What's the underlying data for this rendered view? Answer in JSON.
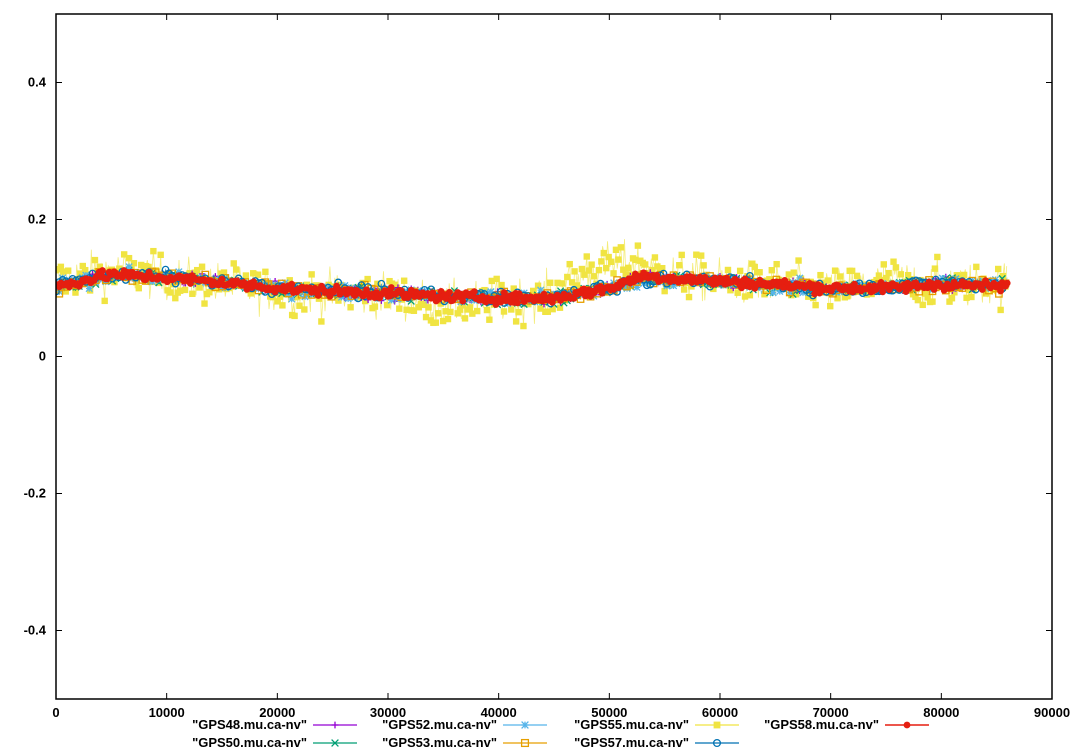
{
  "chart_data": {
    "type": "scatter",
    "title": "",
    "xlabel": "",
    "ylabel": "",
    "xlim": [
      0,
      90000
    ],
    "ylim": [
      -0.5,
      0.5
    ],
    "xticks": [
      "0",
      "10000",
      "20000",
      "30000",
      "40000",
      "50000",
      "60000",
      "70000",
      "80000",
      "90000"
    ],
    "yticks": [
      "0.4",
      "0.2",
      "0",
      "-0.2",
      "-0.4"
    ],
    "grid": false,
    "legend_position": "bottom",
    "series": [
      {
        "name": "\"GPS48.mu.ca-nv\"",
        "color": "#9400d3",
        "marker": "plus",
        "scatter": 0.006,
        "x": [
          0,
          5000,
          10000,
          15000,
          20000,
          25000,
          30000,
          35000,
          40000,
          45000,
          50000,
          53000,
          55000,
          60000,
          65000,
          70000,
          75000,
          80000,
          86000
        ],
        "y": [
          0.102,
          0.12,
          0.115,
          0.108,
          0.1,
          0.095,
          0.092,
          0.088,
          0.085,
          0.085,
          0.1,
          0.117,
          0.115,
          0.11,
          0.105,
          0.1,
          0.1,
          0.105,
          0.102
        ]
      },
      {
        "name": "\"GPS50.mu.ca-nv\"",
        "color": "#009e73",
        "marker": "x",
        "scatter": 0.006,
        "x": [
          0,
          5000,
          10000,
          15000,
          20000,
          25000,
          30000,
          35000,
          40000,
          45000,
          50000,
          53000,
          55000,
          60000,
          65000,
          70000,
          75000,
          80000,
          86000
        ],
        "y": [
          0.1,
          0.118,
          0.115,
          0.108,
          0.1,
          0.095,
          0.092,
          0.088,
          0.085,
          0.085,
          0.1,
          0.115,
          0.113,
          0.108,
          0.103,
          0.098,
          0.1,
          0.107,
          0.104
        ]
      },
      {
        "name": "\"GPS52.mu.ca-nv\"",
        "color": "#56b4e9",
        "marker": "star",
        "scatter": 0.007,
        "x": [
          0,
          5000,
          10000,
          15000,
          20000,
          25000,
          30000,
          35000,
          40000,
          45000,
          50000,
          53000,
          55000,
          60000,
          65000,
          70000,
          75000,
          80000,
          86000
        ],
        "y": [
          0.103,
          0.118,
          0.114,
          0.107,
          0.099,
          0.094,
          0.091,
          0.087,
          0.085,
          0.086,
          0.1,
          0.113,
          0.113,
          0.108,
          0.103,
          0.098,
          0.1,
          0.106,
          0.108
        ]
      },
      {
        "name": "\"GPS53.mu.ca-nv\"",
        "color": "#e69f00",
        "marker": "square",
        "scatter": 0.006,
        "x": [
          0,
          5000,
          10000,
          15000,
          20000,
          25000,
          30000,
          35000,
          40000,
          45000,
          50000,
          53000,
          55000,
          60000,
          65000,
          70000,
          75000,
          80000,
          86000
        ],
        "y": [
          0.1,
          0.119,
          0.115,
          0.108,
          0.1,
          0.095,
          0.092,
          0.088,
          0.086,
          0.086,
          0.1,
          0.116,
          0.114,
          0.109,
          0.104,
          0.099,
          0.1,
          0.105,
          0.1
        ]
      },
      {
        "name": "\"GPS55.mu.ca-nv\"",
        "color": "#f0e442",
        "marker": "filled-square",
        "scatter": 0.022,
        "x": [
          0,
          5000,
          10000,
          15000,
          20000,
          25000,
          30000,
          35000,
          40000,
          45000,
          48000,
          50000,
          53000,
          55000,
          60000,
          65000,
          70000,
          75000,
          80000,
          86000
        ],
        "y": [
          0.11,
          0.125,
          0.115,
          0.105,
          0.095,
          0.092,
          0.09,
          0.075,
          0.08,
          0.09,
          0.125,
          0.135,
          0.135,
          0.12,
          0.11,
          0.105,
          0.095,
          0.11,
          0.105,
          0.105
        ]
      },
      {
        "name": "\"GPS57.mu.ca-nv\"",
        "color": "#0072b2",
        "marker": "circle",
        "scatter": 0.006,
        "x": [
          0,
          5000,
          10000,
          15000,
          20000,
          25000,
          30000,
          35000,
          40000,
          45000,
          50000,
          53000,
          55000,
          60000,
          65000,
          70000,
          75000,
          80000,
          86000
        ],
        "y": [
          0.105,
          0.12,
          0.116,
          0.109,
          0.1,
          0.096,
          0.093,
          0.089,
          0.086,
          0.086,
          0.101,
          0.114,
          0.114,
          0.109,
          0.104,
          0.099,
          0.101,
          0.107,
          0.105
        ]
      },
      {
        "name": "\"GPS58.mu.ca-nv\"",
        "color": "#e51e10",
        "marker": "filled-circle",
        "scatter": 0.005,
        "x": [
          0,
          5000,
          10000,
          15000,
          20000,
          25000,
          30000,
          35000,
          40000,
          45000,
          50000,
          53000,
          55000,
          60000,
          65000,
          70000,
          75000,
          80000,
          86000
        ],
        "y": [
          0.102,
          0.12,
          0.115,
          0.108,
          0.1,
          0.095,
          0.092,
          0.088,
          0.085,
          0.085,
          0.1,
          0.118,
          0.115,
          0.11,
          0.105,
          0.1,
          0.1,
          0.105,
          0.102
        ]
      }
    ]
  }
}
